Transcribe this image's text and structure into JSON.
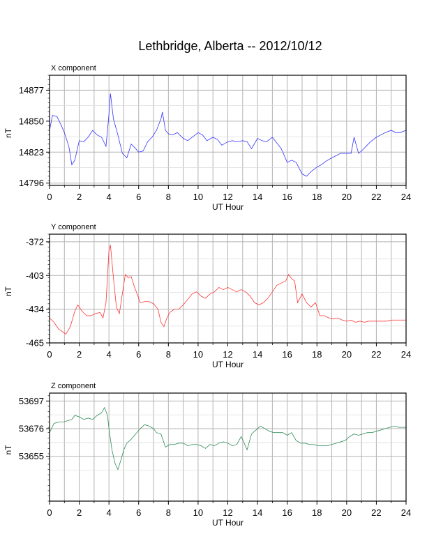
{
  "page": {
    "title": "Lethbridge, Alberta -- 2012/10/12"
  },
  "chart_data": [
    {
      "type": "line",
      "title": "X component",
      "xlabel": "UT Hour",
      "ylabel": "nT",
      "xlim": [
        0,
        24
      ],
      "ylim": [
        14794,
        14890
      ],
      "xticks": [
        "0",
        "2",
        "4",
        "6",
        "8",
        "10",
        "12",
        "14",
        "16",
        "18",
        "20",
        "22",
        "24"
      ],
      "yticks": [
        "14877",
        "14850",
        "14823",
        "14796"
      ],
      "grid": true,
      "series": [
        {
          "color": "#3333ff",
          "x": [
            0,
            0.2,
            0.5,
            0.8,
            1.0,
            1.3,
            1.5,
            1.7,
            2.0,
            2.3,
            2.6,
            2.9,
            3.2,
            3.5,
            3.8,
            4.0,
            4.1,
            4.3,
            4.6,
            4.9,
            5.2,
            5.5,
            5.8,
            6.0,
            6.3,
            6.6,
            6.9,
            7.2,
            7.5,
            7.6,
            7.8,
            8.0,
            8.3,
            8.6,
            9.0,
            9.3,
            9.6,
            10.0,
            10.3,
            10.6,
            11.0,
            11.3,
            11.6,
            12.0,
            12.3,
            12.6,
            13.0,
            13.3,
            13.6,
            14.0,
            14.3,
            14.6,
            15.0,
            15.3,
            15.6,
            16.0,
            16.3,
            16.6,
            17.0,
            17.3,
            17.6,
            18.0,
            18.3,
            18.6,
            19.0,
            19.3,
            19.6,
            20.0,
            20.3,
            20.5,
            20.8,
            21.0,
            21.3,
            21.6,
            22.0,
            22.3,
            22.6,
            23.0,
            23.3,
            23.6,
            24.0
          ],
          "y": [
            14842,
            14855,
            14854,
            14846,
            14840,
            14828,
            14812,
            14816,
            14833,
            14832,
            14836,
            14842,
            14838,
            14836,
            14828,
            14856,
            14874,
            14852,
            14838,
            14822,
            14818,
            14830,
            14826,
            14823,
            14824,
            14832,
            14836,
            14842,
            14852,
            14858,
            14842,
            14839,
            14838,
            14840,
            14835,
            14833,
            14836,
            14840,
            14838,
            14833,
            14836,
            14834,
            14829,
            14832,
            14833,
            14832,
            14833,
            14832,
            14826,
            14835,
            14833,
            14832,
            14836,
            14831,
            14826,
            14814,
            14816,
            14814,
            14804,
            14802,
            14806,
            14810,
            14812,
            14815,
            14818,
            14820,
            14822,
            14822,
            14822,
            14836,
            14822,
            14824,
            14828,
            14832,
            14836,
            14838,
            14840,
            14842,
            14840,
            14840,
            14842
          ]
        }
      ]
    },
    {
      "type": "line",
      "title": "Y component",
      "xlabel": "UT Hour",
      "ylabel": "nT",
      "xlim": [
        0,
        24
      ],
      "ylim": [
        -465,
        -365
      ],
      "xticks": [
        "0",
        "2",
        "4",
        "6",
        "8",
        "10",
        "12",
        "14",
        "16",
        "18",
        "20",
        "22",
        "24"
      ],
      "yticks": [
        "-372",
        "-403",
        "-434",
        "-465"
      ],
      "grid": true,
      "series": [
        {
          "color": "#ff3333",
          "x": [
            0,
            0.3,
            0.6,
            0.9,
            1.1,
            1.4,
            1.7,
            1.9,
            2.2,
            2.5,
            2.8,
            3.1,
            3.4,
            3.6,
            3.8,
            4.0,
            4.1,
            4.3,
            4.5,
            4.7,
            4.9,
            5.1,
            5.3,
            5.5,
            5.7,
            5.9,
            6.1,
            6.4,
            6.7,
            7.0,
            7.3,
            7.5,
            7.7,
            7.9,
            8.1,
            8.4,
            8.7,
            9.0,
            9.3,
            9.6,
            9.9,
            10.2,
            10.5,
            10.8,
            11.1,
            11.4,
            11.7,
            12.0,
            12.3,
            12.6,
            12.9,
            13.2,
            13.5,
            13.8,
            14.1,
            14.4,
            14.7,
            15.0,
            15.3,
            15.6,
            15.9,
            16.1,
            16.3,
            16.5,
            16.7,
            17.0,
            17.3,
            17.6,
            17.9,
            18.2,
            18.5,
            18.8,
            19.1,
            19.4,
            19.7,
            20.0,
            20.3,
            20.6,
            20.9,
            21.2,
            21.5,
            21.8,
            22.1,
            22.4,
            22.7,
            23.0,
            23.3,
            23.6,
            24.0
          ],
          "y": [
            -442,
            -446,
            -452,
            -455,
            -457,
            -450,
            -436,
            -430,
            -436,
            -440,
            -440,
            -438,
            -437,
            -442,
            -428,
            -380,
            -375,
            -405,
            -432,
            -438,
            -420,
            -402,
            -405,
            -404,
            -413,
            -420,
            -428,
            -427,
            -427,
            -429,
            -434,
            -446,
            -450,
            -442,
            -437,
            -434,
            -434,
            -430,
            -425,
            -420,
            -418,
            -422,
            -424,
            -420,
            -418,
            -414,
            -416,
            -414,
            -416,
            -418,
            -416,
            -418,
            -422,
            -428,
            -430,
            -428,
            -424,
            -418,
            -412,
            -410,
            -408,
            -402,
            -406,
            -408,
            -428,
            -420,
            -428,
            -432,
            -428,
            -440,
            -440,
            -442,
            -443,
            -442,
            -444,
            -445,
            -444,
            -446,
            -445,
            -446,
            -445,
            -445,
            -445,
            -445,
            -445,
            -444,
            -444,
            -444,
            -444
          ]
        }
      ]
    },
    {
      "type": "line",
      "title": "Z component",
      "xlabel": "UT Hour",
      "ylabel": "nT",
      "xlim": [
        0,
        24
      ],
      "ylim": [
        53621,
        53703
      ],
      "xticks": [
        "0",
        "2",
        "4",
        "6",
        "8",
        "10",
        "12",
        "14",
        "16",
        "18",
        "20",
        "22",
        "24"
      ],
      "yticks": [
        "53697",
        "53676",
        "53655"
      ],
      "grid": true,
      "series": [
        {
          "color": "#2e8b57",
          "x": [
            0,
            0.3,
            0.6,
            0.9,
            1.2,
            1.5,
            1.7,
            2.0,
            2.3,
            2.6,
            2.9,
            3.2,
            3.5,
            3.7,
            3.9,
            4.0,
            4.2,
            4.4,
            4.6,
            4.8,
            5.0,
            5.2,
            5.5,
            5.8,
            6.1,
            6.4,
            6.7,
            7.0,
            7.2,
            7.5,
            7.8,
            8.1,
            8.4,
            8.7,
            9.0,
            9.3,
            9.6,
            9.9,
            10.2,
            10.5,
            10.8,
            11.1,
            11.4,
            11.7,
            12.0,
            12.3,
            12.6,
            12.9,
            13.1,
            13.3,
            13.6,
            13.9,
            14.2,
            14.5,
            14.8,
            15.1,
            15.4,
            15.7,
            16.0,
            16.3,
            16.6,
            16.9,
            17.2,
            17.5,
            17.8,
            18.1,
            18.4,
            18.7,
            19.0,
            19.3,
            19.6,
            19.9,
            20.2,
            20.5,
            20.8,
            21.1,
            21.4,
            21.7,
            22.0,
            22.3,
            22.6,
            22.9,
            23.2,
            23.5,
            24.0
          ],
          "y": [
            53673,
            53680,
            53681,
            53681,
            53682,
            53683,
            53686,
            53685,
            53683,
            53684,
            53683,
            53686,
            53688,
            53692,
            53686,
            53676,
            53660,
            53650,
            53645,
            53652,
            53660,
            53665,
            53668,
            53672,
            53676,
            53679,
            53678,
            53676,
            53673,
            53672,
            53662,
            53664,
            53664,
            53665,
            53665,
            53663,
            53664,
            53664,
            53663,
            53661,
            53664,
            53663,
            53665,
            53666,
            53665,
            53663,
            53664,
            53670,
            53665,
            53660,
            53672,
            53675,
            53678,
            53676,
            53674,
            53673,
            53673,
            53673,
            53671,
            53673,
            53667,
            53665,
            53665,
            53664,
            53664,
            53663,
            53663,
            53663,
            53664,
            53665,
            53666,
            53667,
            53670,
            53672,
            53671,
            53672,
            53673,
            53673,
            53674,
            53675,
            53676,
            53677,
            53678,
            53677,
            53677
          ]
        }
      ]
    }
  ]
}
